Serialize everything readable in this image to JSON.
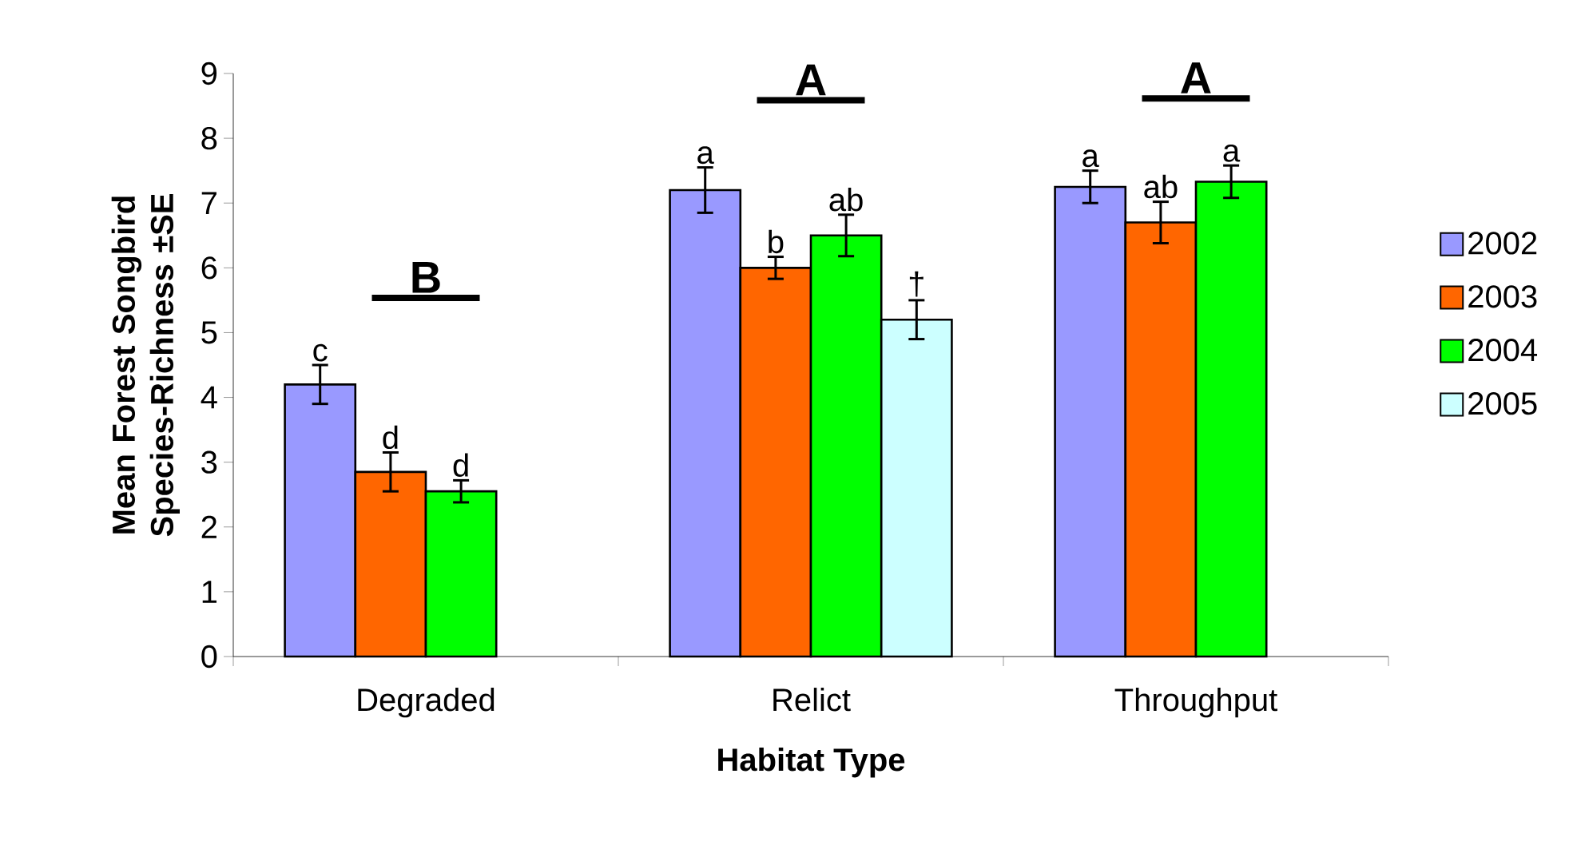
{
  "chart_data": {
    "type": "bar",
    "xlabel": "Habitat Type",
    "ylabel": "Mean Forest Songbird Species-Richness ±SE",
    "categories": [
      "Degraded",
      "Relict",
      "Throughput"
    ],
    "series": [
      {
        "name": "2002",
        "color": "#9999ff",
        "values": [
          4.2,
          7.2,
          7.25
        ],
        "errors": [
          0.3,
          0.35,
          0.25
        ],
        "value_labels": [
          "c",
          "a",
          "a"
        ]
      },
      {
        "name": "2003",
        "color": "#ff6600",
        "values": [
          2.85,
          6.0,
          6.7
        ],
        "errors": [
          0.3,
          0.17,
          0.32
        ],
        "value_labels": [
          "d",
          "b",
          "ab"
        ]
      },
      {
        "name": "2004",
        "color": "#00ff00",
        "values": [
          2.55,
          6.5,
          7.33
        ],
        "errors": [
          0.17,
          0.32,
          0.25
        ],
        "value_labels": [
          "d",
          "ab",
          "a"
        ]
      },
      {
        "name": "2005",
        "color": "#ccffff",
        "values": [
          null,
          5.2,
          null
        ],
        "errors": [
          null,
          0.3,
          null
        ],
        "value_labels": [
          null,
          "†",
          null
        ]
      }
    ],
    "annotations": [
      "B",
      "A",
      "A"
    ],
    "ylim": [
      0,
      9
    ],
    "yticks": [
      0,
      1,
      2,
      3,
      4,
      5,
      6,
      7,
      8,
      9
    ],
    "grid": false,
    "legend": "right"
  }
}
